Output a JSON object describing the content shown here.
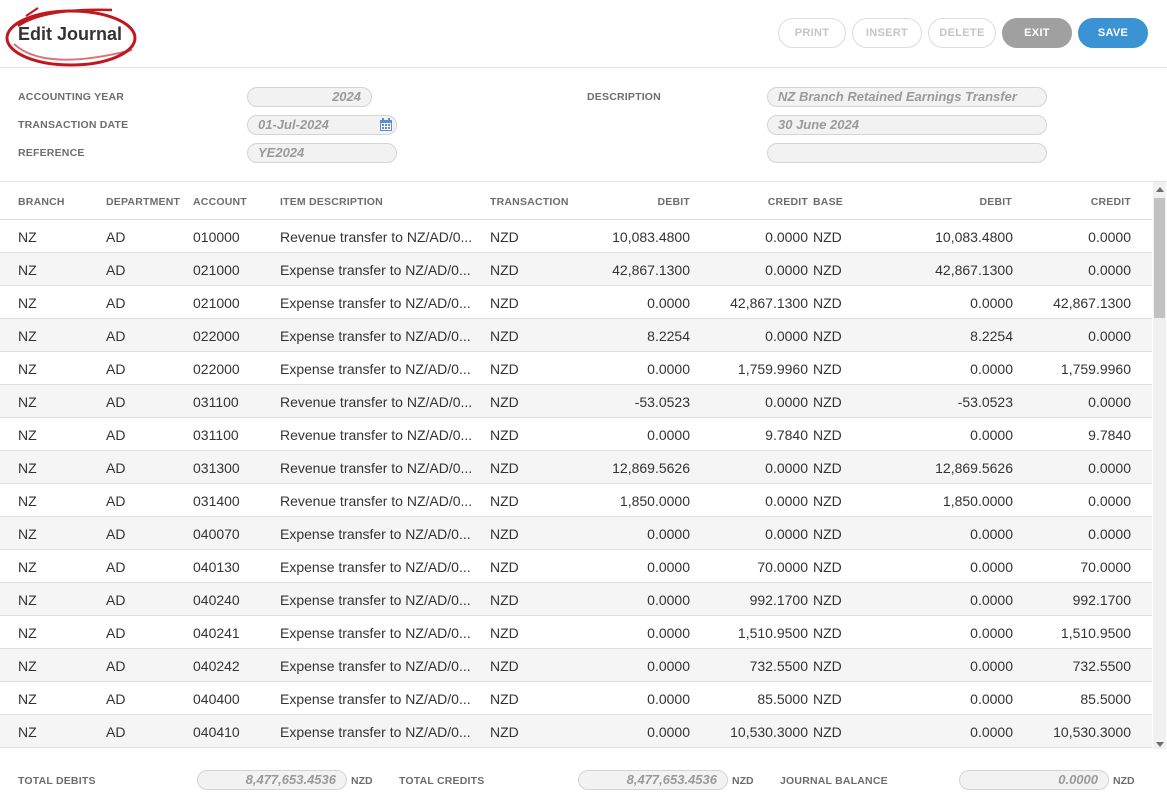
{
  "header": {
    "title": "Edit Journal",
    "buttons": {
      "print": "PRINT",
      "insert": "INSERT",
      "delete": "DELETE",
      "exit": "EXIT",
      "save": "SAVE"
    }
  },
  "form": {
    "accounting_year_label": "ACCOUNTING YEAR",
    "accounting_year": "2024",
    "transaction_date_label": "TRANSACTION DATE",
    "transaction_date": "01-Jul-2024",
    "reference_label": "REFERENCE",
    "reference": "YE2024",
    "description_label": "DESCRIPTION",
    "description_line1": "NZ Branch Retained Earnings Transfer",
    "description_line2": "30 June 2024",
    "description_line3": ""
  },
  "table": {
    "headers": {
      "branch": "BRANCH",
      "department": "DEPARTMENT",
      "account": "ACCOUNT",
      "item_description": "ITEM DESCRIPTION",
      "transaction": "TRANSACTION",
      "debit": "DEBIT",
      "credit": "CREDIT",
      "base": "BASE",
      "base_debit": "DEBIT",
      "base_credit": "CREDIT"
    },
    "rows": [
      [
        "NZ",
        "AD",
        "010000",
        "Revenue transfer to NZ/AD/0...",
        "NZD",
        "10,083.4800",
        "0.0000",
        "NZD",
        "10,083.4800",
        "0.0000"
      ],
      [
        "NZ",
        "AD",
        "021000",
        "Expense transfer to NZ/AD/0...",
        "NZD",
        "42,867.1300",
        "0.0000",
        "NZD",
        "42,867.1300",
        "0.0000"
      ],
      [
        "NZ",
        "AD",
        "021000",
        "Expense transfer to NZ/AD/0...",
        "NZD",
        "0.0000",
        "42,867.1300",
        "NZD",
        "0.0000",
        "42,867.1300"
      ],
      [
        "NZ",
        "AD",
        "022000",
        "Expense transfer to NZ/AD/0...",
        "NZD",
        "8.2254",
        "0.0000",
        "NZD",
        "8.2254",
        "0.0000"
      ],
      [
        "NZ",
        "AD",
        "022000",
        "Expense transfer to NZ/AD/0...",
        "NZD",
        "0.0000",
        "1,759.9960",
        "NZD",
        "0.0000",
        "1,759.9960"
      ],
      [
        "NZ",
        "AD",
        "031100",
        "Revenue transfer to NZ/AD/0...",
        "NZD",
        "-53.0523",
        "0.0000",
        "NZD",
        "-53.0523",
        "0.0000"
      ],
      [
        "NZ",
        "AD",
        "031100",
        "Revenue transfer to NZ/AD/0...",
        "NZD",
        "0.0000",
        "9.7840",
        "NZD",
        "0.0000",
        "9.7840"
      ],
      [
        "NZ",
        "AD",
        "031300",
        "Revenue transfer to NZ/AD/0...",
        "NZD",
        "12,869.5626",
        "0.0000",
        "NZD",
        "12,869.5626",
        "0.0000"
      ],
      [
        "NZ",
        "AD",
        "031400",
        "Revenue transfer to NZ/AD/0...",
        "NZD",
        "1,850.0000",
        "0.0000",
        "NZD",
        "1,850.0000",
        "0.0000"
      ],
      [
        "NZ",
        "AD",
        "040070",
        "Expense transfer to NZ/AD/0...",
        "NZD",
        "0.0000",
        "0.0000",
        "NZD",
        "0.0000",
        "0.0000"
      ],
      [
        "NZ",
        "AD",
        "040130",
        "Expense transfer to NZ/AD/0...",
        "NZD",
        "0.0000",
        "70.0000",
        "NZD",
        "0.0000",
        "70.0000"
      ],
      [
        "NZ",
        "AD",
        "040240",
        "Expense transfer to NZ/AD/0...",
        "NZD",
        "0.0000",
        "992.1700",
        "NZD",
        "0.0000",
        "992.1700"
      ],
      [
        "NZ",
        "AD",
        "040241",
        "Expense transfer to NZ/AD/0...",
        "NZD",
        "0.0000",
        "1,510.9500",
        "NZD",
        "0.0000",
        "1,510.9500"
      ],
      [
        "NZ",
        "AD",
        "040242",
        "Expense transfer to NZ/AD/0...",
        "NZD",
        "0.0000",
        "732.5500",
        "NZD",
        "0.0000",
        "732.5500"
      ],
      [
        "NZ",
        "AD",
        "040400",
        "Expense transfer to NZ/AD/0...",
        "NZD",
        "0.0000",
        "85.5000",
        "NZD",
        "0.0000",
        "85.5000"
      ],
      [
        "NZ",
        "AD",
        "040410",
        "Expense transfer to NZ/AD/0...",
        "NZD",
        "0.0000",
        "10,530.3000",
        "NZD",
        "0.0000",
        "10,530.3000"
      ]
    ]
  },
  "footer": {
    "total_debits_label": "TOTAL DEBITS",
    "total_debits": "8,477,653.4536",
    "total_debits_unit": "NZD",
    "total_credits_label": "TOTAL CREDITS",
    "total_credits": "8,477,653.4536",
    "total_credits_unit": "NZD",
    "journal_balance_label": "JOURNAL BALANCE",
    "journal_balance": "0.0000",
    "journal_balance_unit": "NZD"
  },
  "icons": {
    "calendar": "calendar-icon",
    "scroll_up": "arrow-up-icon",
    "scroll_down": "arrow-down-icon"
  },
  "colors": {
    "accent": "#3b93d4",
    "exit": "#a0a0a0",
    "highlight": "#c0181e"
  }
}
